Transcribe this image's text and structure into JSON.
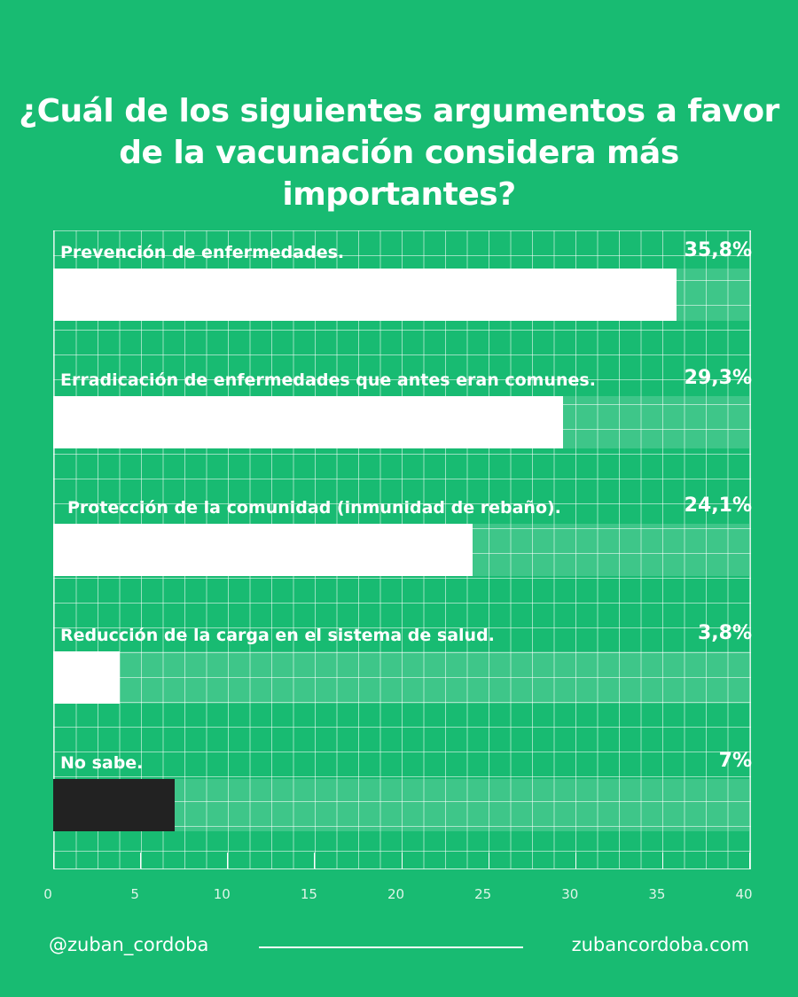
{
  "chart_data": {
    "type": "bar",
    "orientation": "horizontal",
    "title": "¿Cuál de los siguientes argumentos a favor de la vacunación considera más importantes?",
    "categories": [
      "Prevención de enfermedades.",
      "Erradicación de enfermedades que antes eran comunes.",
      "Protección de la comunidad (inmunidad de rebaño).",
      "Reducción de la carga en el sistema de salud.",
      "No sabe."
    ],
    "values": [
      35.8,
      29.3,
      24.1,
      3.8,
      7
    ],
    "value_labels": [
      "35,8%",
      "29,3%",
      "24,1%",
      "3,8%",
      "7%"
    ],
    "bar_colors": [
      "#ffffff",
      "#ffffff",
      "#ffffff",
      "#ffffff",
      "#222222"
    ],
    "xlim": [
      0,
      40
    ],
    "x_ticks": [
      "0",
      "5",
      "10",
      "15",
      "20",
      "25",
      "30",
      "35",
      "40"
    ],
    "grid": true
  },
  "colors": {
    "background": "#18bb72"
  },
  "footer": {
    "handle": "@zuban_cordoba",
    "website": "zubancordoba.com"
  }
}
